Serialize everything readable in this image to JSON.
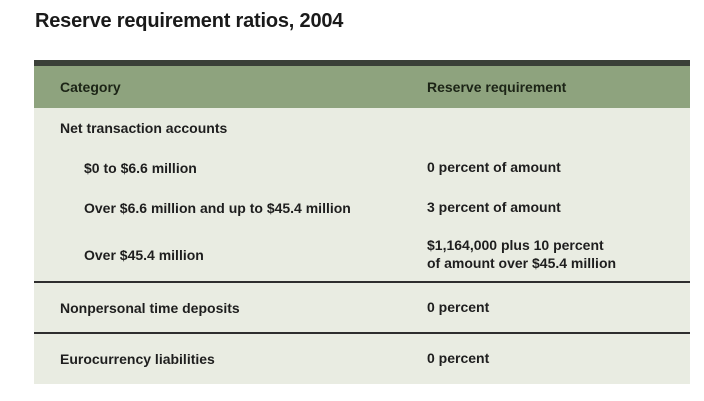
{
  "title": "Reserve requirement ratios, 2004",
  "colors": {
    "header_background": "#8ea37e",
    "body_background": "#e9ece2",
    "top_border": "#3a4038",
    "divider": "#2e2e2e",
    "text": "#1e1e1e"
  },
  "table": {
    "columns": [
      "Category",
      "Reserve requirement"
    ],
    "rows": [
      {
        "category": "Net transaction accounts",
        "requirement": "",
        "indent": false
      },
      {
        "category": "$0 to $6.6 million",
        "requirement": "0 percent of amount",
        "indent": true
      },
      {
        "category": "Over $6.6 million and up to $45.4 million",
        "requirement": "3 percent of amount",
        "indent": true
      },
      {
        "category": "Over $45.4 million",
        "requirement": "$1,164,000 plus 10 percent\nof amount over $45.4 million",
        "indent": true
      },
      {
        "category": "Nonpersonal time deposits",
        "requirement": "0 percent",
        "indent": false
      },
      {
        "category": "Eurocurrency liabilities",
        "requirement": "0 percent",
        "indent": false
      }
    ]
  }
}
